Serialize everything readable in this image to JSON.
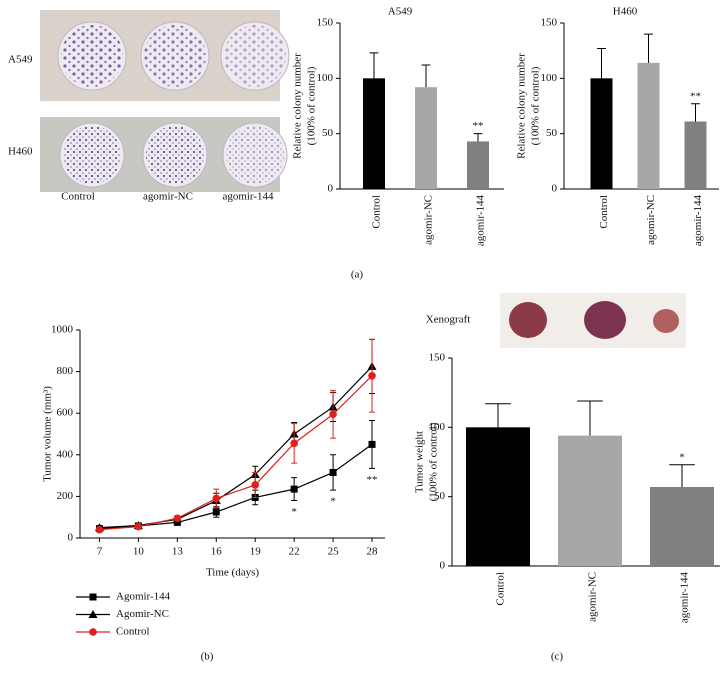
{
  "plate_photo": {
    "rows": [
      "A549",
      "H460"
    ],
    "columns": [
      "Control",
      "agomir-NC",
      "agomir-144"
    ]
  },
  "xenograft_label": "Xenograft",
  "panel_labels": [
    "(a)",
    "(b)",
    "(c)"
  ],
  "chart_data": [
    {
      "type": "bar",
      "title": "A549",
      "ylabel": [
        "Relative colony number",
        "(100% of control)"
      ],
      "categories": [
        "Control",
        "agomir-NC",
        "agomir-144"
      ],
      "values": [
        100,
        92,
        43
      ],
      "errors": [
        23,
        20,
        7
      ],
      "colors": [
        "#000000",
        "#a7a7aa",
        "#808080"
      ],
      "annotations": [
        null,
        null,
        "**"
      ],
      "ylim": [
        0,
        150
      ],
      "yticks": [
        0,
        50,
        100,
        150
      ]
    },
    {
      "type": "bar",
      "title": "H460",
      "ylabel": [
        "Relative colony number",
        "(100% of control)"
      ],
      "categories": [
        "Control",
        "agomir-NC",
        "agomir-144"
      ],
      "values": [
        100,
        114,
        61
      ],
      "errors": [
        27,
        26,
        16
      ],
      "colors": [
        "#000000",
        "#a7a7aa",
        "#808080"
      ],
      "annotations": [
        null,
        null,
        "**"
      ],
      "ylim": [
        0,
        150
      ],
      "yticks": [
        0,
        50,
        100,
        150
      ]
    },
    {
      "type": "line",
      "xlabel": "Time (days)",
      "ylabel": "Tumor volume (mm³)",
      "x": [
        7,
        10,
        13,
        16,
        19,
        22,
        25,
        28
      ],
      "xlim": [
        5.5,
        29
      ],
      "xticks": [
        7,
        10,
        13,
        16,
        19,
        22,
        25,
        28
      ],
      "ylim": [
        0,
        1000
      ],
      "yticks": [
        0,
        200,
        400,
        600,
        800,
        1000
      ],
      "series": [
        {
          "name": "Agomir-144",
          "color": "#000000",
          "marker": "square",
          "values": [
            45,
            58,
            75,
            125,
            195,
            235,
            315,
            450
          ],
          "errors": [
            8,
            6,
            10,
            25,
            35,
            55,
            85,
            115
          ]
        },
        {
          "name": "Agomir-NC",
          "color": "#000000",
          "marker": "triangle",
          "values": [
            50,
            60,
            90,
            180,
            305,
            500,
            630,
            825
          ],
          "errors": [
            8,
            6,
            10,
            35,
            40,
            55,
            70,
            130
          ]
        },
        {
          "name": "Control",
          "color": "#e0201b",
          "marker": "circle",
          "values": [
            40,
            55,
            95,
            190,
            255,
            455,
            595,
            780
          ],
          "errors": [
            8,
            6,
            10,
            45,
            60,
            95,
            115,
            175
          ]
        }
      ],
      "annotations": [
        null,
        null,
        null,
        null,
        null,
        "*",
        "*",
        "**"
      ]
    },
    {
      "type": "bar",
      "ylabel": [
        "Tumor weight",
        "(100% of control)"
      ],
      "categories": [
        "Control",
        "agomir-NC",
        "agomir-144"
      ],
      "values": [
        100,
        94,
        57
      ],
      "errors": [
        17,
        25,
        16
      ],
      "colors": [
        "#000000",
        "#a7a7aa",
        "#808080"
      ],
      "annotations": [
        null,
        null,
        "*"
      ],
      "ylim": [
        0,
        150
      ],
      "yticks": [
        0,
        50,
        100,
        150
      ]
    }
  ]
}
